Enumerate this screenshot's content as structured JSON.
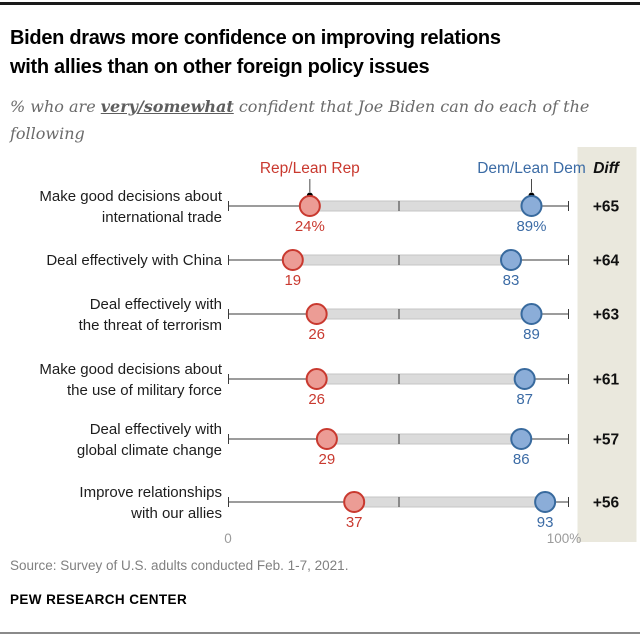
{
  "header": {
    "title_line1": "Biden draws more confidence on improving relations",
    "title_line2": "with allies than on other foreign policy issues",
    "subtitle_prefix": "% who are ",
    "subtitle_emphasis": "very/somewhat",
    "subtitle_rest_line1": " confident that Joe Biden can do each of the",
    "subtitle_line2": "following"
  },
  "chart_data": {
    "type": "dumbbell",
    "title": "Confidence in Joe Biden on foreign policy issues, by party",
    "legend": [
      {
        "name": "rep",
        "label": "Rep/Lean Rep"
      },
      {
        "name": "dem",
        "label": "Dem/Lean Dem"
      }
    ],
    "diff_header": "Diff",
    "axis": {
      "min": 0,
      "max": 100,
      "min_label": "0",
      "max_label": "100%",
      "mid_tick": 50
    },
    "rows": [
      {
        "label_lines": [
          "Make good decisions about",
          "international trade"
        ],
        "rep": 24,
        "dem": 89,
        "rep_label": "24%",
        "dem_label": "89%",
        "diff": "+65"
      },
      {
        "label_lines": [
          "Deal effectively with China"
        ],
        "rep": 19,
        "dem": 83,
        "rep_label": "19",
        "dem_label": "83",
        "diff": "+64"
      },
      {
        "label_lines": [
          "Deal effectively with",
          "the threat of terrorism"
        ],
        "rep": 26,
        "dem": 89,
        "rep_label": "26",
        "dem_label": "89",
        "diff": "+63"
      },
      {
        "label_lines": [
          "Make good decisions about",
          "the use of military force"
        ],
        "rep": 26,
        "dem": 87,
        "rep_label": "26",
        "dem_label": "87",
        "diff": "+61"
      },
      {
        "label_lines": [
          "Deal effectively with",
          "global climate change"
        ],
        "rep": 29,
        "dem": 86,
        "rep_label": "29",
        "dem_label": "86",
        "diff": "+57"
      },
      {
        "label_lines": [
          "Improve relationships",
          "with our allies"
        ],
        "rep": 37,
        "dem": 93,
        "rep_label": "37",
        "dem_label": "93",
        "diff": "+56"
      }
    ],
    "colors": {
      "rep_text": "#c9392f",
      "rep_fill": "#ec9c95",
      "rep_stroke": "#c9392f",
      "dem_text": "#3b6ba5",
      "dem_fill": "#8badd8",
      "dem_stroke": "#386a9e",
      "band_fill": "#dbdbdb",
      "band_border": "#c6c6c6",
      "axis": "#3a3a3a",
      "panel_bg": "#eae8dd",
      "tick_label": "#9b9b9b",
      "diff_text": "#111111",
      "row_label": "#1d1d1d",
      "leader": "#4a4a4a"
    }
  },
  "footer": {
    "source": "Source: Survey of U.S. adults conducted Feb. 1-7, 2021.",
    "brand": "PEW RESEARCH CENTER"
  }
}
